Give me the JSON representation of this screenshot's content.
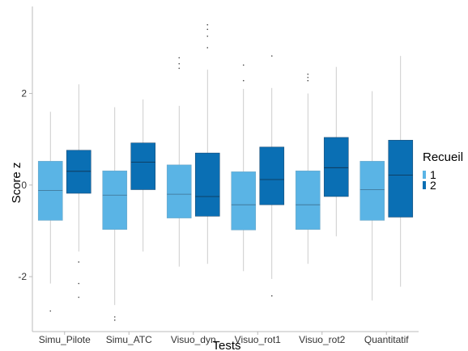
{
  "chart_data": {
    "type": "boxplot",
    "title": "",
    "xlabel": "Tests",
    "ylabel": "Score z",
    "ylim": [
      -3.2,
      3.9
    ],
    "yticks": [
      -2,
      0,
      2
    ],
    "categories": [
      "Simu_Pilote",
      "Simu_ATC",
      "Visuo_dyn",
      "Visuo_rot1",
      "Visuo_rot2",
      "Quantitatif"
    ],
    "legend": {
      "title": "Recueil",
      "position": "right"
    },
    "grid": false,
    "series": [
      {
        "name": "1",
        "color": "#5ab4e5",
        "boxes": [
          {
            "whisker_low": -2.15,
            "q1": -0.77,
            "median": -0.12,
            "q3": 0.52,
            "whisker_high": 1.6,
            "outliers": [
              -2.75
            ]
          },
          {
            "whisker_low": -2.62,
            "q1": -0.97,
            "median": -0.22,
            "q3": 0.31,
            "whisker_high": 1.7,
            "outliers": [
              -2.88,
              -2.95
            ]
          },
          {
            "whisker_low": -1.78,
            "q1": -0.72,
            "median": -0.2,
            "q3": 0.44,
            "whisker_high": 1.73,
            "outliers": [
              2.55,
              2.65,
              2.78
            ]
          },
          {
            "whisker_low": -1.88,
            "q1": -0.98,
            "median": -0.43,
            "q3": 0.29,
            "whisker_high": 2.1,
            "outliers": [
              2.28,
              2.62
            ]
          },
          {
            "whisker_low": -1.72,
            "q1": -0.97,
            "median": -0.43,
            "q3": 0.31,
            "whisker_high": 2.0,
            "outliers": [
              2.28,
              2.35,
              2.42
            ]
          },
          {
            "whisker_low": -2.52,
            "q1": -0.77,
            "median": -0.1,
            "q3": 0.52,
            "whisker_high": 2.05,
            "outliers": []
          }
        ]
      },
      {
        "name": "2",
        "color": "#0a6fb4",
        "boxes": [
          {
            "whisker_low": -1.45,
            "q1": -0.18,
            "median": 0.3,
            "q3": 0.76,
            "whisker_high": 2.2,
            "outliers": [
              -1.68,
              -2.15,
              -2.45
            ]
          },
          {
            "whisker_low": -1.45,
            "q1": -0.1,
            "median": 0.5,
            "q3": 0.92,
            "whisker_high": 1.87,
            "outliers": []
          },
          {
            "whisker_low": -1.72,
            "q1": -0.68,
            "median": -0.25,
            "q3": 0.7,
            "whisker_high": 2.52,
            "outliers": [
              3.0,
              3.25,
              3.4,
              3.5
            ]
          },
          {
            "whisker_low": -2.05,
            "q1": -0.43,
            "median": 0.12,
            "q3": 0.83,
            "whisker_high": 2.12,
            "outliers": [
              -2.42,
              2.82
            ]
          },
          {
            "whisker_low": -1.12,
            "q1": -0.25,
            "median": 0.38,
            "q3": 1.04,
            "whisker_high": 2.58,
            "outliers": []
          },
          {
            "whisker_low": -2.22,
            "q1": -0.7,
            "median": 0.22,
            "q3": 0.98,
            "whisker_high": 2.82,
            "outliers": []
          }
        ]
      }
    ]
  }
}
